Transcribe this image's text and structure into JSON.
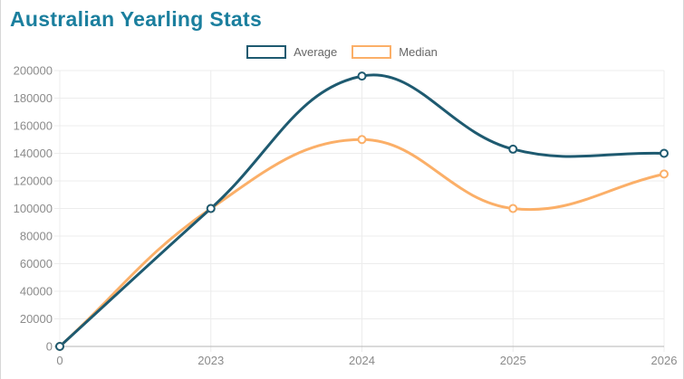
{
  "header": {
    "title": "Australian Yearling Stats",
    "title_color": "#1b7f9e"
  },
  "chart_data": {
    "type": "line",
    "title": "Australian Yearling Stats",
    "categories": [
      "0",
      "2023",
      "2024",
      "2025",
      "2026"
    ],
    "series": [
      {
        "name": "Average",
        "color": "#1e5a70",
        "values": [
          0,
          100000,
          196000,
          143000,
          140000
        ]
      },
      {
        "name": "Median",
        "color": "#fbaf68",
        "values": [
          0,
          100000,
          150000,
          100000,
          125000
        ]
      }
    ],
    "ylim": [
      0,
      200000
    ],
    "y_tick_step": 20000,
    "y_tick_labels": [
      "0",
      "20000",
      "40000",
      "60000",
      "80000",
      "100000",
      "120000",
      "140000",
      "160000",
      "180000",
      "200000"
    ],
    "xlabel": "",
    "ylabel": "",
    "grid": true,
    "legend_position": "top",
    "line_tension": 0.4,
    "line_width": 3,
    "point_radius": 4,
    "point_fill": "#ffffff",
    "axis_text_color": "#8b8b8b",
    "grid_color": "#ececec",
    "axis_line_color": "#b5b5b5"
  }
}
